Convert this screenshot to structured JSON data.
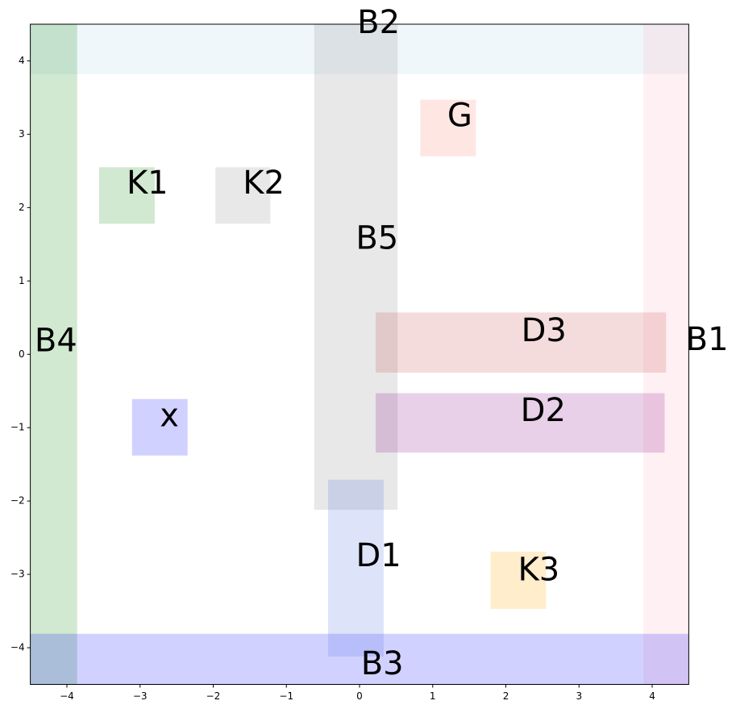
{
  "chart_data": {
    "type": "rectangles",
    "xlim": [
      -4.5,
      4.5
    ],
    "ylim": [
      -4.5,
      4.5
    ],
    "xticks": [
      {
        "value": -4,
        "label": "−4"
      },
      {
        "value": -3,
        "label": "−3"
      },
      {
        "value": -2,
        "label": "−2"
      },
      {
        "value": -1,
        "label": "−1"
      },
      0,
      1,
      2,
      3,
      4
    ],
    "yticks": [
      {
        "value": -4,
        "label": "−4"
      },
      {
        "value": -3,
        "label": "−3"
      },
      {
        "value": -2,
        "label": "−2"
      },
      {
        "value": -1,
        "label": "−1"
      },
      0,
      1,
      2,
      3,
      4
    ],
    "rects": [
      {
        "label": "B2",
        "x": [
          -4.5,
          4.5
        ],
        "y": [
          3.82,
          4.5
        ],
        "text_x": 0.26,
        "text_y": 4.5,
        "color": "#add8e6",
        "opacity": 0.2
      },
      {
        "label": "B1",
        "x": [
          3.88,
          4.5
        ],
        "y": [
          -4.5,
          4.5
        ],
        "text_x": 4.75,
        "text_y": 0.18,
        "color": "#ffb6c1",
        "opacity": 0.2
      },
      {
        "label": "B4",
        "x": [
          -4.5,
          -3.86
        ],
        "y": [
          -4.5,
          4.5
        ],
        "text_x": -4.15,
        "text_y": 0.16,
        "color": "#008000",
        "opacity": 0.18
      },
      {
        "label": "B3",
        "x": [
          -4.5,
          4.5
        ],
        "y": [
          -4.5,
          -3.81
        ],
        "text_x": 0.31,
        "text_y": -4.24,
        "color": "#0000ff",
        "opacity": 0.18
      },
      {
        "label": "B5",
        "x": [
          -0.62,
          0.52
        ],
        "y": [
          -2.12,
          4.5
        ],
        "text_x": 0.24,
        "text_y": 1.56,
        "color": "#808080",
        "opacity": 0.18
      },
      {
        "label": "G",
        "x": [
          0.83,
          1.59
        ],
        "y": [
          2.7,
          3.47
        ],
        "text_x": 1.37,
        "text_y": 3.23,
        "color": "#fa8072",
        "opacity": 0.2
      },
      {
        "label": "K1",
        "x": [
          -3.56,
          -2.8
        ],
        "y": [
          1.78,
          2.55
        ],
        "text_x": -2.9,
        "text_y": 2.31,
        "color": "#008000",
        "opacity": 0.18
      },
      {
        "label": "K2",
        "x": [
          -1.97,
          -1.22
        ],
        "y": [
          1.78,
          2.55
        ],
        "text_x": -1.31,
        "text_y": 2.31,
        "color": "#808080",
        "opacity": 0.18
      },
      {
        "label": "D3",
        "x": [
          0.22,
          4.19
        ],
        "y": [
          -0.25,
          0.57
        ],
        "text_x": 2.52,
        "text_y": 0.3,
        "color": "#c85050",
        "opacity": 0.2
      },
      {
        "label": "D2",
        "x": [
          0.22,
          4.17
        ],
        "y": [
          -1.34,
          -0.53
        ],
        "text_x": 2.51,
        "text_y": -0.79,
        "color": "#800080",
        "opacity": 0.18
      },
      {
        "label": "x",
        "x": [
          -3.11,
          -2.35
        ],
        "y": [
          -1.38,
          -0.61
        ],
        "text_x": -2.6,
        "text_y": -0.86,
        "color": "#0000ff",
        "opacity": 0.18
      },
      {
        "label": "D1",
        "x": [
          -0.43,
          0.33
        ],
        "y": [
          -4.12,
          -1.71
        ],
        "text_x": 0.26,
        "text_y": -2.77,
        "color": "#4169e1",
        "opacity": 0.18
      },
      {
        "label": "K3",
        "x": [
          1.79,
          2.55
        ],
        "y": [
          -3.47,
          -2.69
        ],
        "text_x": 2.45,
        "text_y": -2.96,
        "color": "#ffa500",
        "opacity": 0.2
      }
    ]
  }
}
